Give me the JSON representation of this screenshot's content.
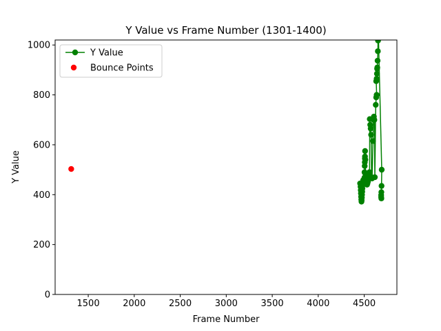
{
  "chart_data": {
    "type": "line",
    "title": "Y Value vs Frame Number (1301-1400)",
    "xlabel": "Frame Number",
    "ylabel": "Y Value",
    "xlim": [
      1140,
      4855
    ],
    "ylim": [
      0,
      1020
    ],
    "xticks": [
      1500,
      2000,
      2500,
      3000,
      3500,
      4000,
      4500
    ],
    "yticks": [
      0,
      200,
      400,
      600,
      800,
      1000
    ],
    "grid": false,
    "legend_position": "top-left",
    "series": [
      {
        "name": "Y Value",
        "kind": "line-markers",
        "color": "#008000",
        "points": [
          [
            4455,
            445
          ],
          [
            4460,
            432
          ],
          [
            4462,
            418
          ],
          [
            4464,
            405
          ],
          [
            4466,
            392
          ],
          [
            4468,
            380
          ],
          [
            4470,
            372
          ],
          [
            4472,
            378
          ],
          [
            4474,
            388
          ],
          [
            4476,
            400
          ],
          [
            4478,
            412
          ],
          [
            4480,
            425
          ],
          [
            4482,
            438
          ],
          [
            4485,
            450
          ],
          [
            4488,
            458
          ],
          [
            4495,
            452
          ],
          [
            4500,
            448
          ],
          [
            4502,
            468
          ],
          [
            4503,
            490
          ],
          [
            4505,
            515
          ],
          [
            4506,
            530
          ],
          [
            4507,
            545
          ],
          [
            4508,
            553
          ],
          [
            4509,
            575
          ],
          [
            4512,
            540
          ],
          [
            4515,
            480
          ],
          [
            4520,
            460
          ],
          [
            4525,
            445
          ],
          [
            4530,
            440
          ],
          [
            4535,
            445
          ],
          [
            4540,
            452
          ],
          [
            4545,
            462
          ],
          [
            4550,
            470
          ],
          [
            4553,
            480
          ],
          [
            4556,
            490
          ],
          [
            4558,
            478
          ],
          [
            4560,
            703
          ],
          [
            4565,
            680
          ],
          [
            4570,
            665
          ],
          [
            4575,
            640
          ],
          [
            4580,
            470
          ],
          [
            4585,
            465
          ],
          [
            4595,
            615
          ],
          [
            4600,
            700
          ],
          [
            4605,
            713
          ],
          [
            4610,
            700
          ],
          [
            4615,
            470
          ],
          [
            4625,
            760
          ],
          [
            4630,
            790
          ],
          [
            4635,
            800
          ],
          [
            4630,
            855
          ],
          [
            4635,
            865
          ],
          [
            4638,
            885
          ],
          [
            4640,
            905
          ],
          [
            4642,
            910
          ],
          [
            4645,
            937
          ],
          [
            4648,
            975
          ],
          [
            4650,
            1018
          ],
          [
            4655,
            1025
          ],
          [
            4690,
            500
          ],
          [
            4688,
            435
          ],
          [
            4686,
            410
          ],
          [
            4684,
            398
          ],
          [
            4684,
            390
          ],
          [
            4686,
            385
          ]
        ]
      },
      {
        "name": "Bounce Points",
        "kind": "scatter",
        "color": "#ff0000",
        "points": [
          [
            1315,
            503
          ]
        ]
      }
    ]
  }
}
